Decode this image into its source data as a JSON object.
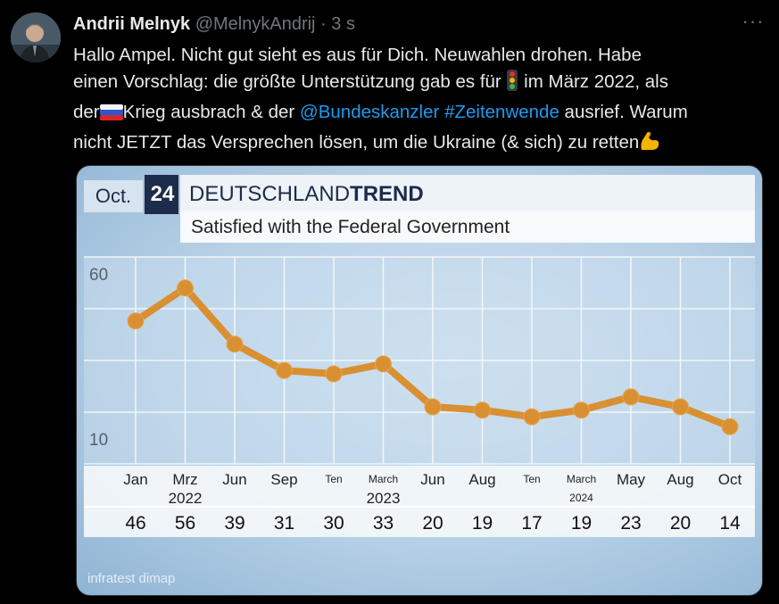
{
  "tweet": {
    "author_name": "Andrii Melnyk",
    "author_handle": "@MelnykAndrij",
    "separator": "·",
    "time": "3 s",
    "more_label": "···",
    "line1": "Hallo Ampel. Nicht gut sieht es aus für Dich. Neuwahlen drohen. Habe",
    "line2_a": "einen Vorschlag: die größte Unterstützung gab es für ",
    "line2_b": " im März 2022, als",
    "line3_a": "der",
    "line3_b": "Krieg ausbrach & der ",
    "mention": "@Bundeskanzler",
    "hashtag": "#Zeitenwende",
    "line3_c": " ausrief. Warum",
    "line4": "nicht JETZT das Versprechen lösen, um die Ukraine (& sich) zu retten"
  },
  "icons": [
    "more-icon",
    "traffic-light-icon",
    "russia-flag-icon",
    "flexed-biceps-icon"
  ],
  "chart_header": {
    "month_badge": "Oct.",
    "day_badge": "24",
    "brand_a": "DEUTSCHLAND",
    "brand_b": "TREND",
    "subtitle": "Satisfied with the Federal Government",
    "source": "infratest dimap"
  },
  "colors": {
    "accent": "#1d9bf0",
    "line": "#d99033",
    "badge_dark": "#1d2c4a",
    "background": "#000000"
  },
  "chart_data": {
    "type": "line",
    "title": "Satisfied with the Federal Government",
    "categories": [
      "Jan",
      "Mrz",
      "Jun",
      "Sep",
      "Ten",
      "March",
      "Jun",
      "Aug",
      "Ten",
      "March",
      "May",
      "Aug",
      "Oct"
    ],
    "year_labels": [
      {
        "index": 1,
        "label": "2022"
      },
      {
        "index": 5,
        "label": "2023"
      },
      {
        "index": 9,
        "label": "2024"
      }
    ],
    "values": [
      46,
      56,
      39,
      31,
      30,
      33,
      20,
      19,
      17,
      19,
      23,
      20,
      14
    ],
    "y_ticks": [
      60,
      10
    ],
    "ylim": [
      10,
      60
    ],
    "grid": true
  }
}
